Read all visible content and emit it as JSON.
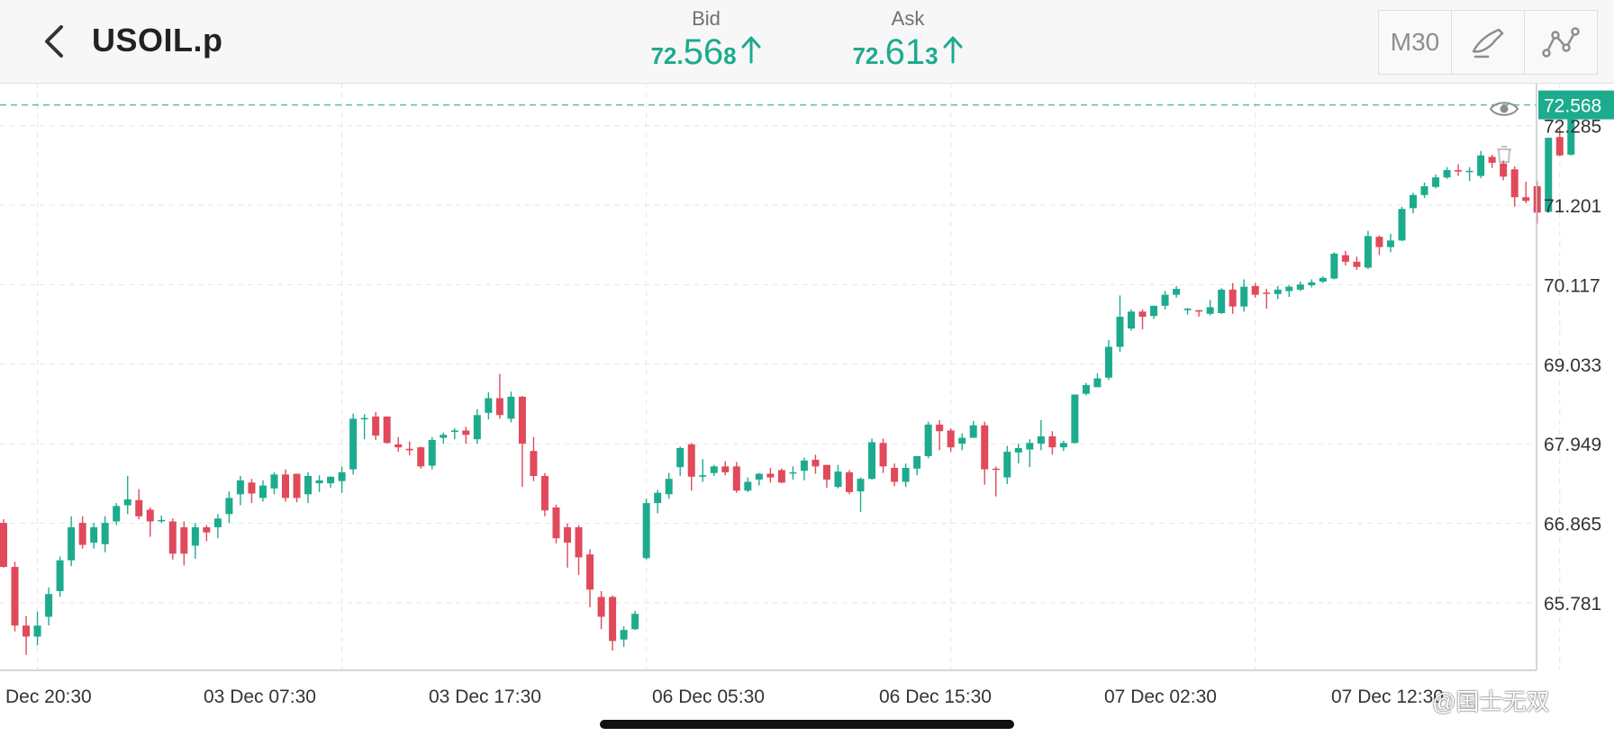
{
  "header": {
    "symbol": "USOIL.p",
    "bid": {
      "label": "Bid",
      "price_small": "72.",
      "price_big": "56",
      "price_pip": "8"
    },
    "ask": {
      "label": "Ask",
      "price_small": "72.",
      "price_big": "61",
      "price_pip": "3"
    },
    "timeframe": "M30"
  },
  "colors": {
    "up": "#1dab8e",
    "down": "#e04a5a",
    "grid": "#e6e6e6"
  },
  "icons": [
    "back-chevron-icon",
    "arrow-up-icon",
    "draw-tool-icon",
    "indicator-icon",
    "eye-icon",
    "trash-icon"
  ],
  "watermark": "@国士无双",
  "chart_data": {
    "type": "candlestick",
    "symbol": "USOIL.p",
    "timeframe": "M30",
    "current_price": 72.568,
    "current_price_label": "72.568",
    "y_range": [
      64.86,
      72.87
    ],
    "y_ticks": [
      "72.285",
      "71.201",
      "70.117",
      "69.033",
      "67.949",
      "66.865",
      "65.781"
    ],
    "y_tick_values": [
      72.285,
      71.201,
      70.117,
      69.033,
      67.949,
      66.865,
      65.781
    ],
    "x_ticks": [
      "Dec 20:30",
      "03 Dec 07:30",
      "03 Dec 17:30",
      "06 Dec 05:30",
      "06 Dec 15:30",
      "07 Dec 02:30",
      "07 Dec 12:30"
    ],
    "x_tick_index": [
      3,
      30,
      57,
      84,
      111,
      138,
      165
    ],
    "candles": [
      [
        66.87,
        66.27,
        66.26,
        66.92
      ],
      [
        66.27,
        65.47,
        65.39,
        66.34
      ],
      [
        65.47,
        65.32,
        65.07,
        65.6
      ],
      [
        65.32,
        65.47,
        65.2,
        65.66
      ],
      [
        65.59,
        65.9,
        65.47,
        65.99
      ],
      [
        65.94,
        66.36,
        65.86,
        66.41
      ],
      [
        66.36,
        66.81,
        66.28,
        66.96
      ],
      [
        66.87,
        66.57,
        66.52,
        66.96
      ],
      [
        66.6,
        66.81,
        66.52,
        66.87
      ],
      [
        66.58,
        66.87,
        66.47,
        66.96
      ],
      [
        66.89,
        67.1,
        66.84,
        67.14
      ],
      [
        67.11,
        67.19,
        66.99,
        67.51
      ],
      [
        67.18,
        66.96,
        66.92,
        67.33
      ],
      [
        67.05,
        66.89,
        66.68,
        67.08
      ],
      [
        66.9,
        66.91,
        66.87,
        66.97
      ],
      [
        66.89,
        66.45,
        66.37,
        66.93
      ],
      [
        66.81,
        66.45,
        66.29,
        66.89
      ],
      [
        66.56,
        66.81,
        66.38,
        66.87
      ],
      [
        66.81,
        66.74,
        66.62,
        66.84
      ],
      [
        66.81,
        66.93,
        66.66,
        66.99
      ],
      [
        66.99,
        67.21,
        66.87,
        67.3
      ],
      [
        67.26,
        67.45,
        67.11,
        67.51
      ],
      [
        67.42,
        67.27,
        67.14,
        67.47
      ],
      [
        67.21,
        67.38,
        67.16,
        67.45
      ],
      [
        67.34,
        67.53,
        67.26,
        67.56
      ],
      [
        67.53,
        67.21,
        67.16,
        67.6
      ],
      [
        67.54,
        67.21,
        67.15,
        67.54
      ],
      [
        67.26,
        67.51,
        67.14,
        67.56
      ],
      [
        67.41,
        67.45,
        67.29,
        67.52
      ],
      [
        67.41,
        67.5,
        67.35,
        67.5
      ],
      [
        67.44,
        67.56,
        67.28,
        67.64
      ],
      [
        67.6,
        68.29,
        67.53,
        68.36
      ],
      [
        68.29,
        68.3,
        68.01,
        68.35
      ],
      [
        68.32,
        68.06,
        68.0,
        68.38
      ],
      [
        68.32,
        67.96,
        67.95,
        68.32
      ],
      [
        67.94,
        67.9,
        67.84,
        68.04
      ],
      [
        67.88,
        67.86,
        67.79,
        67.98
      ],
      [
        67.9,
        67.64,
        67.61,
        67.91
      ],
      [
        67.65,
        68.0,
        67.6,
        68.04
      ],
      [
        68.03,
        68.07,
        67.95,
        68.1
      ],
      [
        68.11,
        68.13,
        68.01,
        68.16
      ],
      [
        68.13,
        68.07,
        67.95,
        68.18
      ],
      [
        68.01,
        68.34,
        67.95,
        68.42
      ],
      [
        68.37,
        68.57,
        68.28,
        68.65
      ],
      [
        68.57,
        68.34,
        68.29,
        68.9
      ],
      [
        68.29,
        68.59,
        68.24,
        68.66
      ],
      [
        68.59,
        67.95,
        67.36,
        68.6
      ],
      [
        67.85,
        67.51,
        67.44,
        68.04
      ],
      [
        67.51,
        67.04,
        66.96,
        67.55
      ],
      [
        67.08,
        66.66,
        66.59,
        67.12
      ],
      [
        66.81,
        66.6,
        66.26,
        66.86
      ],
      [
        66.81,
        66.4,
        66.16,
        66.84
      ],
      [
        66.44,
        65.96,
        65.72,
        66.51
      ],
      [
        65.86,
        65.59,
        65.42,
        65.94
      ],
      [
        65.86,
        65.26,
        65.13,
        65.88
      ],
      [
        65.28,
        65.41,
        65.18,
        65.46
      ],
      [
        65.42,
        65.63,
        65.41,
        65.67
      ],
      [
        66.39,
        67.14,
        66.37,
        67.2
      ],
      [
        67.14,
        67.28,
        67.0,
        67.32
      ],
      [
        67.26,
        67.47,
        67.2,
        67.55
      ],
      [
        67.63,
        67.89,
        67.51,
        67.91
      ],
      [
        67.94,
        67.5,
        67.31,
        67.96
      ],
      [
        67.5,
        67.52,
        67.43,
        67.74
      ],
      [
        67.55,
        67.64,
        67.51,
        67.66
      ],
      [
        67.64,
        67.56,
        67.52,
        67.71
      ],
      [
        67.64,
        67.31,
        67.28,
        67.7
      ],
      [
        67.31,
        67.43,
        67.29,
        67.49
      ],
      [
        67.46,
        67.54,
        67.38,
        67.55
      ],
      [
        67.54,
        67.49,
        67.42,
        67.62
      ],
      [
        67.59,
        67.42,
        67.41,
        67.61
      ],
      [
        67.56,
        67.56,
        67.46,
        67.64
      ],
      [
        67.58,
        67.72,
        67.45,
        67.76
      ],
      [
        67.73,
        67.64,
        67.54,
        67.8
      ],
      [
        67.66,
        67.46,
        67.35,
        67.66
      ],
      [
        67.36,
        67.57,
        67.34,
        67.66
      ],
      [
        67.56,
        67.29,
        67.26,
        67.59
      ],
      [
        67.3,
        67.47,
        67.02,
        67.49
      ],
      [
        67.47,
        67.97,
        67.46,
        68.02
      ],
      [
        67.96,
        67.64,
        67.55,
        68.02
      ],
      [
        67.62,
        67.43,
        67.37,
        67.68
      ],
      [
        67.43,
        67.62,
        67.36,
        67.68
      ],
      [
        67.61,
        67.78,
        67.52,
        67.78
      ],
      [
        67.78,
        68.21,
        67.75,
        68.25
      ],
      [
        68.21,
        68.12,
        67.86,
        68.27
      ],
      [
        68.13,
        67.9,
        67.84,
        68.16
      ],
      [
        67.95,
        68.03,
        67.86,
        68.09
      ],
      [
        68.03,
        68.2,
        68.03,
        68.26
      ],
      [
        68.2,
        67.6,
        67.39,
        68.25
      ],
      [
        67.61,
        67.6,
        67.23,
        67.64
      ],
      [
        67.49,
        67.84,
        67.4,
        67.92
      ],
      [
        67.83,
        67.89,
        67.68,
        67.95
      ],
      [
        67.87,
        67.96,
        67.63,
        68.01
      ],
      [
        67.95,
        68.05,
        67.86,
        68.27
      ],
      [
        68.05,
        67.9,
        67.8,
        68.12
      ],
      [
        67.9,
        67.96,
        67.85,
        67.99
      ],
      [
        67.96,
        68.62,
        67.95,
        68.62
      ],
      [
        68.63,
        68.75,
        68.61,
        68.78
      ],
      [
        68.72,
        68.84,
        68.73,
        68.91
      ],
      [
        68.85,
        69.27,
        68.82,
        69.36
      ],
      [
        69.27,
        69.68,
        69.2,
        69.97
      ],
      [
        69.52,
        69.75,
        69.49,
        69.78
      ],
      [
        69.75,
        69.68,
        69.51,
        69.78
      ],
      [
        69.69,
        69.83,
        69.65,
        69.83
      ],
      [
        69.83,
        69.98,
        69.78,
        70.03
      ],
      [
        69.98,
        70.06,
        69.94,
        70.1
      ],
      [
        69.77,
        69.79,
        69.71,
        69.8
      ],
      [
        69.77,
        69.75,
        69.68,
        69.77
      ],
      [
        69.72,
        69.81,
        69.7,
        69.91
      ],
      [
        69.73,
        70.05,
        69.72,
        70.07
      ],
      [
        70.05,
        69.82,
        69.72,
        70.14
      ],
      [
        69.82,
        70.09,
        69.75,
        70.19
      ],
      [
        70.1,
        69.98,
        69.94,
        70.14
      ],
      [
        70.01,
        70.0,
        69.79,
        70.06
      ],
      [
        69.99,
        70.05,
        69.92,
        70.1
      ],
      [
        70.03,
        70.09,
        69.95,
        70.11
      ],
      [
        70.05,
        70.12,
        70.03,
        70.16
      ],
      [
        70.11,
        70.15,
        70.08,
        70.19
      ],
      [
        70.16,
        70.21,
        70.14,
        70.23
      ],
      [
        70.2,
        70.54,
        70.19,
        70.56
      ],
      [
        70.52,
        70.43,
        70.38,
        70.58
      ],
      [
        70.43,
        70.36,
        70.32,
        70.5
      ],
      [
        70.35,
        70.78,
        70.33,
        70.85
      ],
      [
        70.77,
        70.63,
        70.52,
        70.79
      ],
      [
        70.63,
        70.72,
        70.56,
        70.81
      ],
      [
        70.72,
        71.15,
        70.71,
        71.18
      ],
      [
        71.16,
        71.34,
        71.09,
        71.37
      ],
      [
        71.34,
        71.46,
        71.3,
        71.51
      ],
      [
        71.45,
        71.58,
        71.43,
        71.62
      ],
      [
        71.58,
        71.68,
        71.56,
        71.72
      ],
      [
        71.68,
        71.66,
        71.6,
        71.76
      ],
      [
        71.66,
        71.67,
        71.53,
        71.72
      ],
      [
        71.6,
        71.88,
        71.57,
        71.94
      ],
      [
        71.86,
        71.78,
        71.71,
        71.89
      ],
      [
        71.77,
        71.59,
        71.54,
        71.81
      ],
      [
        71.69,
        71.31,
        71.18,
        71.73
      ],
      [
        71.31,
        71.26,
        71.23,
        71.52
      ],
      [
        71.46,
        71.1,
        70.95,
        71.53
      ],
      [
        71.11,
        72.12,
        71.1,
        72.12
      ],
      [
        72.13,
        71.88,
        71.87,
        72.25
      ],
      [
        71.89,
        72.62,
        71.88,
        72.65
      ]
    ]
  }
}
